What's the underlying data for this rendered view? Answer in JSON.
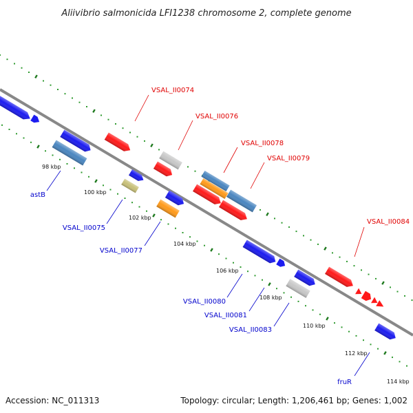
{
  "title": "Aliivibrio salmonicida LFI1238 chromosome 2, complete genome",
  "footer": {
    "accession": "Accession: NC_011313",
    "summary": "Topology: circular; Length: 1,206,461 bp; Genes: 1,002"
  },
  "colors": {
    "backbone": "#888888",
    "dots": "#2e9a2e",
    "tick": "#1f7a1f",
    "forward_label": "#e00000",
    "reverse_label": "#0000cc",
    "red": "#ff1a1a",
    "blue": "#1c1cf0",
    "steelblue": "#4a86c0",
    "orange": "#ff9a1a",
    "gray": "#c8c8c8",
    "khaki": "#c8c078"
  },
  "scale_labels": [
    "98 kbp",
    "100 kbp",
    "102 kbp",
    "104 kbp",
    "106 kbp",
    "108 kbp",
    "110 kbp",
    "112 kbp",
    "114 kbp"
  ],
  "gene_labels": {
    "forward": [
      "VSAL_II0074",
      "VSAL_II0076",
      "VSAL_II0078",
      "VSAL_II0079",
      "VSAL_II0084"
    ],
    "reverse": [
      "astB",
      "VSAL_II0075",
      "VSAL_II0077",
      "VSAL_II0080",
      "VSAL_II0081",
      "VSAL_II0083",
      "fruR"
    ]
  }
}
